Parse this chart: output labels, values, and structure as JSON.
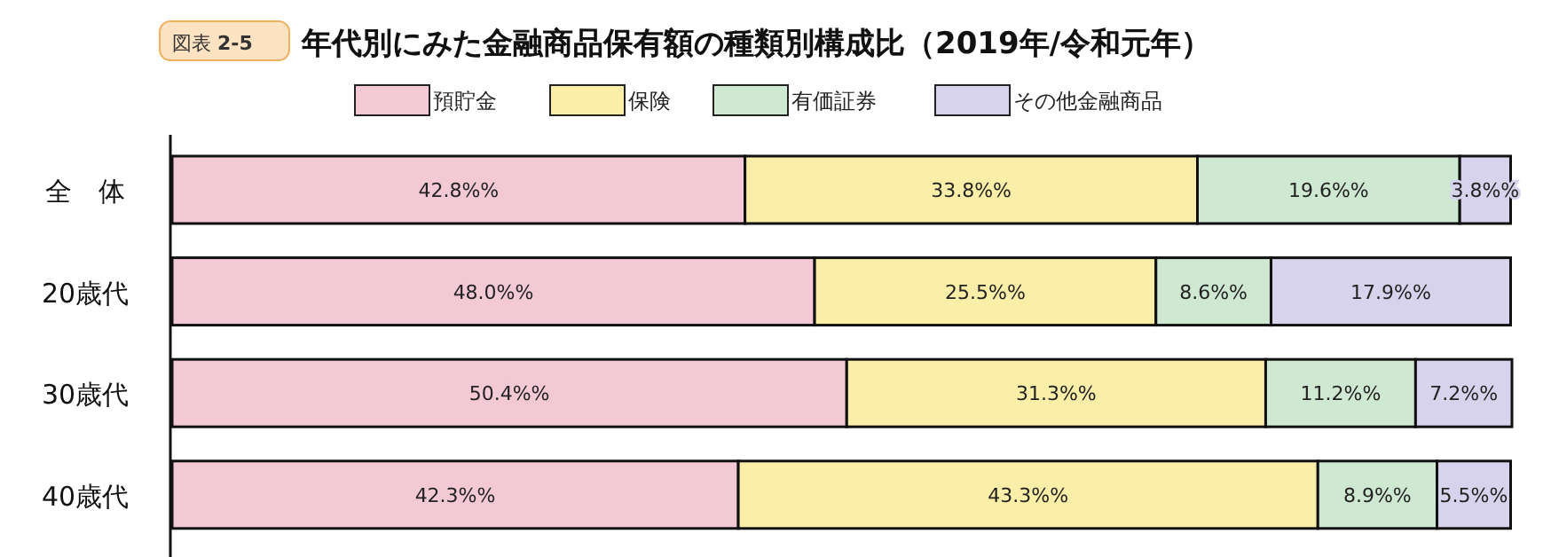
{
  "chart_data": {
    "type": "bar",
    "orientation": "horizontal",
    "stacked": true,
    "title": "年代別にみた金融商品保有額の種類別構成比（2019年/令和元年）",
    "annotations": [
      "図表 **2-5**"
    ],
    "legend": "top",
    "categories": [
      "全　体",
      "20歳代",
      "30歳代",
      "40歳代"
    ],
    "series": [
      {
        "name": "預貯金",
        "color": "#f3c9d5",
        "values": [
          42.8,
          48.0,
          50.4,
          42.3
        ],
        "value_labels": [
          "42.8%%",
          "48.0%%",
          "50.4%%",
          "42.3%%"
        ]
      },
      {
        "name": "保険",
        "color": "#fbeea8",
        "values": [
          33.8,
          25.5,
          31.3,
          43.3
        ],
        "value_labels": [
          "33.8%%",
          "25.5%%",
          "31.3%%",
          "43.3%%"
        ]
      },
      {
        "name": "有価証券",
        "color": "#cfe8d2",
        "values": [
          19.6,
          8.6,
          11.2,
          8.9
        ],
        "value_labels": [
          "19.6%%",
          "8.6%%",
          "11.2%%",
          "8.9%%"
        ]
      },
      {
        "name": "その他金融商品",
        "color": "#d8d3ec",
        "values": [
          3.8,
          17.9,
          7.2,
          5.5
        ],
        "value_labels": [
          "3.8%%",
          "17.9%%",
          "7.2%%",
          "5.5%%"
        ]
      }
    ]
  }
}
